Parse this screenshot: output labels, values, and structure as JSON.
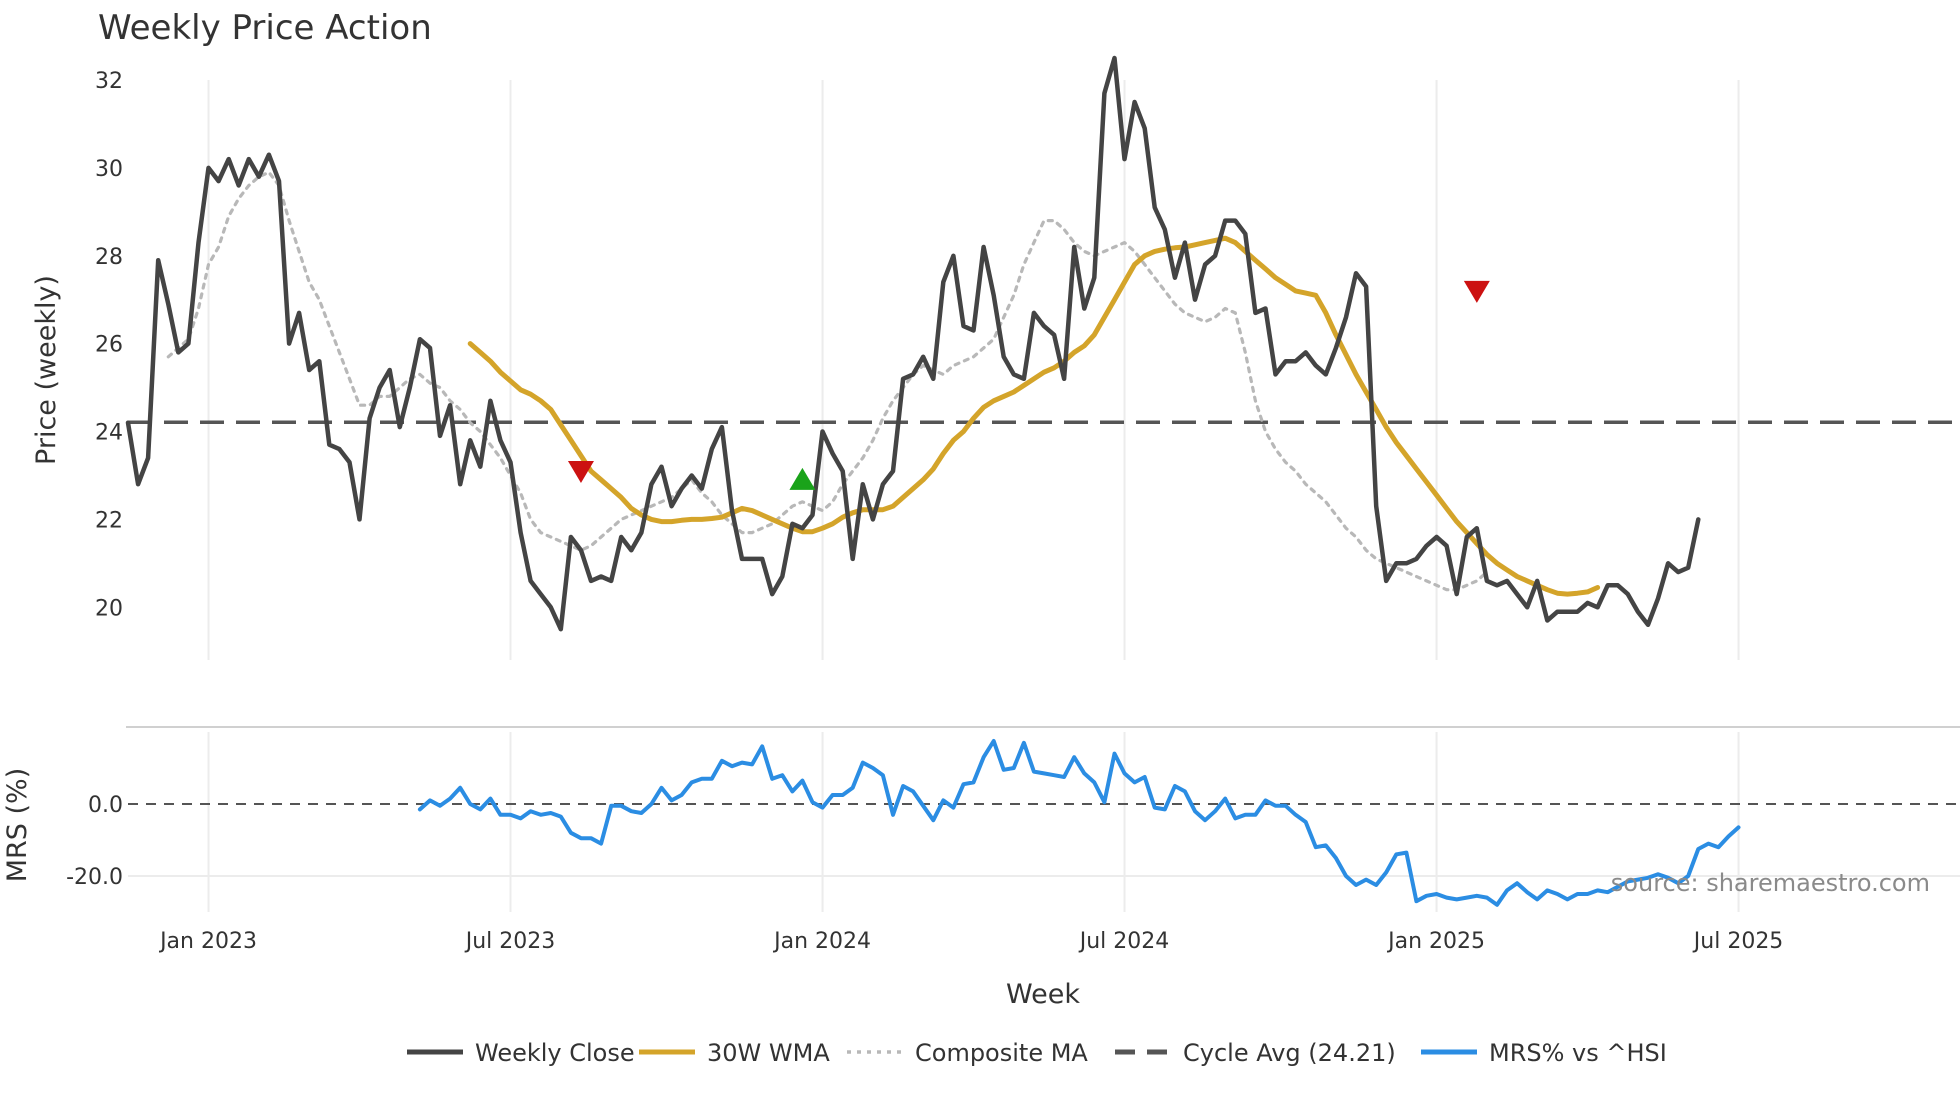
{
  "chart_data": {
    "type": "line",
    "title": "Weekly Price Action",
    "xlabel": "Week",
    "source": "source: sharemaestro.com",
    "colors": {
      "close": "#444444",
      "wma": "#d4a42a",
      "composite": "#b8b8b8",
      "cycle": "#555555",
      "mrs": "#2b8de3",
      "buy": "#1aa31a",
      "sell": "#cc1111",
      "grid": "#ececec"
    },
    "x_ticks": [
      {
        "week": 8,
        "label": "Jan 2023"
      },
      {
        "week": 38,
        "label": "Jul 2023"
      },
      {
        "week": 69,
        "label": "Jan 2024"
      },
      {
        "week": 99,
        "label": "Jul 2024"
      },
      {
        "week": 130,
        "label": "Jan 2025"
      },
      {
        "week": 160,
        "label": "Jul 2025"
      }
    ],
    "x_range": [
      0,
      182
    ],
    "price_panel": {
      "ylabel": "Price (weekly)",
      "ylim": [
        18.8,
        32.0
      ],
      "y_ticks": [
        20,
        22,
        24,
        26,
        28,
        30,
        32
      ],
      "cycle_avg": 24.21,
      "series": [
        {
          "name": "Weekly Close",
          "start_week": 0,
          "values": [
            24.2,
            22.8,
            23.4,
            27.9,
            26.9,
            25.8,
            26.0,
            28.3,
            30.0,
            29.7,
            30.2,
            29.6,
            30.2,
            29.8,
            30.3,
            29.7,
            26.0,
            26.7,
            25.4,
            25.6,
            23.7,
            23.6,
            23.3,
            22.0,
            24.3,
            25.0,
            25.4,
            24.1,
            25.0,
            26.1,
            25.9,
            23.9,
            24.6,
            22.8,
            23.8,
            23.2,
            24.7,
            23.8,
            23.3,
            21.7,
            20.6,
            20.3,
            20.0,
            19.5,
            21.6,
            21.3,
            20.6,
            20.7,
            20.6,
            21.6,
            21.3,
            21.7,
            22.8,
            23.2,
            22.3,
            22.7,
            23.0,
            22.7,
            23.6,
            24.1,
            22.2,
            21.1,
            21.1,
            21.1,
            20.3,
            20.7,
            21.9,
            21.8,
            22.1,
            24.0,
            23.5,
            23.1,
            21.1,
            22.8,
            22.0,
            22.8,
            23.1,
            25.2,
            25.3,
            25.7,
            25.2,
            27.4,
            28.0,
            26.4,
            26.3,
            28.2,
            27.1,
            25.7,
            25.3,
            25.2,
            26.7,
            26.4,
            26.2,
            25.2,
            28.2,
            26.8,
            27.5,
            31.7,
            32.5,
            30.2,
            31.5,
            30.9,
            29.1,
            28.6,
            27.5,
            28.3,
            27.0,
            27.8,
            28.0,
            28.8,
            28.8,
            28.5,
            26.7,
            26.8,
            25.3,
            25.6,
            25.6,
            25.8,
            25.5,
            25.3,
            25.9,
            26.6,
            27.6,
            27.3,
            22.3,
            20.6,
            21.0,
            21.0,
            21.1,
            21.4,
            21.6,
            21.4,
            20.3,
            21.6,
            21.8,
            20.6,
            20.5,
            20.6,
            20.3,
            20.0,
            20.6,
            19.7,
            19.9,
            19.9,
            19.9,
            20.1,
            20.0,
            20.5,
            20.5,
            20.3,
            19.9,
            19.6,
            20.2,
            21.0,
            20.8,
            20.9,
            22.0
          ]
        },
        {
          "name": "30W WMA",
          "start_week": 34,
          "values": [
            26.0,
            25.8,
            25.6,
            25.35,
            25.15,
            24.95,
            24.85,
            24.7,
            24.5,
            24.15,
            23.8,
            23.45,
            23.1,
            22.9,
            22.7,
            22.5,
            22.25,
            22.1,
            22.0,
            21.95,
            21.95,
            21.98,
            22.0,
            22.0,
            22.02,
            22.05,
            22.15,
            22.25,
            22.2,
            22.1,
            22.0,
            21.9,
            21.8,
            21.72,
            21.72,
            21.8,
            21.9,
            22.05,
            22.15,
            22.22,
            22.22,
            22.22,
            22.3,
            22.5,
            22.7,
            22.9,
            23.15,
            23.5,
            23.8,
            24.0,
            24.3,
            24.55,
            24.7,
            24.8,
            24.9,
            25.05,
            25.2,
            25.35,
            25.45,
            25.6,
            25.8,
            25.95,
            26.2,
            26.6,
            27.0,
            27.4,
            27.8,
            28.0,
            28.1,
            28.15,
            28.18,
            28.2,
            28.25,
            28.3,
            28.35,
            28.4,
            28.3,
            28.1,
            27.9,
            27.7,
            27.5,
            27.35,
            27.2,
            27.15,
            27.1,
            26.7,
            26.2,
            25.75,
            25.3,
            24.9,
            24.5,
            24.1,
            23.75,
            23.45,
            23.15,
            22.85,
            22.55,
            22.25,
            21.95,
            21.7,
            21.45,
            21.2,
            21.0,
            20.85,
            20.7,
            20.6,
            20.5,
            20.4,
            20.32,
            20.3,
            20.32,
            20.35,
            20.45
          ]
        },
        {
          "name": "Composite MA",
          "start_week": 4,
          "values": [
            25.7,
            25.9,
            26.1,
            26.8,
            27.8,
            28.2,
            28.9,
            29.3,
            29.6,
            29.8,
            29.9,
            29.6,
            28.8,
            28.1,
            27.4,
            27.0,
            26.4,
            25.8,
            25.2,
            24.6,
            24.6,
            24.8,
            24.8,
            25.0,
            25.2,
            25.3,
            25.1,
            25.0,
            24.7,
            24.5,
            24.2,
            24.0,
            23.7,
            23.4,
            23.0,
            22.6,
            22.0,
            21.7,
            21.6,
            21.5,
            21.4,
            21.3,
            21.4,
            21.6,
            21.8,
            22.0,
            22.1,
            22.2,
            22.3,
            22.4,
            22.5,
            22.7,
            22.9,
            22.6,
            22.4,
            22.1,
            21.9,
            21.7,
            21.7,
            21.8,
            21.9,
            22.1,
            22.3,
            22.4,
            22.3,
            22.2,
            22.4,
            22.8,
            23.1,
            23.4,
            23.8,
            24.3,
            24.7,
            25.0,
            25.3,
            25.5,
            25.4,
            25.3,
            25.5,
            25.6,
            25.7,
            25.9,
            26.1,
            26.6,
            27.1,
            27.8,
            28.3,
            28.8,
            28.8,
            28.6,
            28.3,
            28.1,
            28.0,
            28.1,
            28.2,
            28.3,
            28.1,
            27.8,
            27.5,
            27.2,
            26.9,
            26.7,
            26.6,
            26.5,
            26.6,
            26.8,
            26.7,
            25.8,
            24.7,
            24.0,
            23.6,
            23.3,
            23.1,
            22.8,
            22.6,
            22.4,
            22.1,
            21.8,
            21.6,
            21.3,
            21.1,
            21.0,
            20.9,
            20.8,
            20.7,
            20.6,
            20.5,
            20.4,
            20.4,
            20.5,
            20.6,
            20.8
          ]
        }
      ],
      "markers": [
        {
          "type": "sell",
          "week": 45,
          "value": 23.1
        },
        {
          "type": "buy",
          "week": 67,
          "value": 22.9
        },
        {
          "type": "sell",
          "week": 134,
          "value": 27.2
        }
      ]
    },
    "mrs_panel": {
      "ylabel": "MRS (%)",
      "ylim": [
        -30,
        20
      ],
      "y_ticks": [
        {
          "value": 0,
          "label": "0.0"
        },
        {
          "value": -20,
          "label": "-20.0"
        }
      ],
      "series": [
        {
          "name": "MRS% vs ^HSI",
          "start_week": 29,
          "values": [
            -1.5,
            1.0,
            -0.5,
            1.5,
            4.5,
            0.0,
            -1.5,
            1.5,
            -3.0,
            -3.0,
            -4.0,
            -2.0,
            -3.0,
            -2.5,
            -3.5,
            -8.0,
            -9.5,
            -9.5,
            -11.0,
            -0.5,
            -0.5,
            -2.0,
            -2.5,
            0.0,
            4.5,
            1.0,
            2.5,
            6.0,
            7.0,
            7.0,
            12.0,
            10.5,
            11.5,
            11.0,
            16.0,
            7.0,
            8.0,
            3.5,
            6.5,
            0.5,
            -1.0,
            2.5,
            2.5,
            4.5,
            11.5,
            10.0,
            8.0,
            -3.0,
            5.0,
            3.5,
            -0.5,
            -4.5,
            1.0,
            -1.0,
            5.5,
            6.0,
            13.0,
            17.5,
            9.5,
            10.0,
            17.0,
            9.0,
            8.5,
            8.0,
            7.5,
            13.0,
            8.5,
            6.0,
            0.5,
            14.0,
            8.5,
            6.0,
            7.5,
            -1.0,
            -1.5,
            5.0,
            3.5,
            -2.0,
            -4.5,
            -2.0,
            1.5,
            -4.0,
            -3.0,
            -3.0,
            1.0,
            -0.5,
            -0.5,
            -3.0,
            -5.0,
            -12.0,
            -11.5,
            -15.0,
            -20.0,
            -22.5,
            -21.0,
            -22.5,
            -19.0,
            -14.0,
            -13.5,
            -27.0,
            -25.5,
            -25.0,
            -26.0,
            -26.5,
            -26.0,
            -25.5,
            -26.0,
            -28.0,
            -24.0,
            -22.0,
            -24.5,
            -26.5,
            -24.0,
            -25.0,
            -26.5,
            -25.0,
            -25.0,
            -24.0,
            -24.5,
            -23.0,
            -21.5,
            -21.0,
            -20.5,
            -19.5,
            -20.5,
            -22.0,
            -20.0,
            -12.5,
            -11.0,
            -12.0,
            -9.0,
            -6.5
          ]
        }
      ]
    },
    "legend": [
      {
        "label": "Weekly Close",
        "style": "solid",
        "color": "#444444"
      },
      {
        "label": "30W WMA",
        "style": "solid",
        "color": "#d4a42a"
      },
      {
        "label": "Composite MA",
        "style": "dotted",
        "color": "#b8b8b8"
      },
      {
        "label": "Cycle Avg (24.21)",
        "style": "dashed",
        "color": "#555555"
      },
      {
        "label": "MRS% vs ^HSI",
        "style": "solid",
        "color": "#2b8de3"
      }
    ]
  }
}
